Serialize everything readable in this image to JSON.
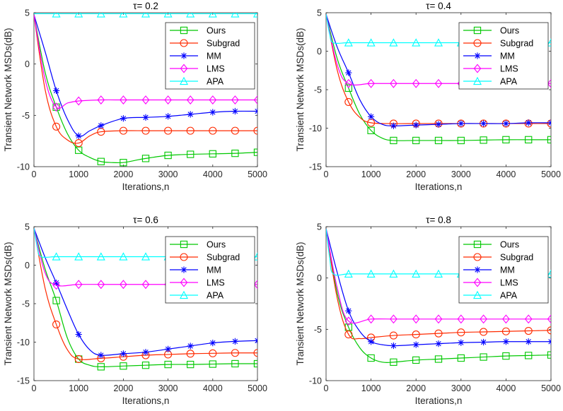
{
  "chart_data": [
    {
      "type": "line",
      "title": "τ= 0.2",
      "xlabel": "Iterations,n",
      "ylabel": "Transient Network MSDs(dB)",
      "xlim": [
        0,
        5000
      ],
      "ylim": [
        -10,
        5
      ],
      "xticks": [
        0,
        1000,
        2000,
        3000,
        4000,
        5000
      ],
      "yticks": [
        5,
        0,
        -5,
        -10
      ],
      "legend_position": "top-right",
      "series": [
        {
          "name": "Ours",
          "color": "#00c800",
          "marker": "square",
          "x": [
            0,
            250,
            500,
            750,
            1000,
            1250,
            1500,
            1750,
            2000,
            2250,
            2500,
            3000,
            3500,
            4000,
            4500,
            5000
          ],
          "y": [
            4.8,
            -0.8,
            -4.2,
            -6.8,
            -8.4,
            -9.1,
            -9.5,
            -9.6,
            -9.6,
            -9.4,
            -9.2,
            -8.9,
            -8.8,
            -8.75,
            -8.7,
            -8.6
          ]
        },
        {
          "name": "Subgrad",
          "color": "#ff2a00",
          "marker": "circle",
          "x": [
            0,
            250,
            500,
            750,
            1000,
            1250,
            1500,
            2000,
            2500,
            3000,
            3500,
            4000,
            4500,
            5000
          ],
          "y": [
            4.8,
            -2.5,
            -6.1,
            -7.4,
            -7.7,
            -7.0,
            -6.6,
            -6.5,
            -6.5,
            -6.5,
            -6.5,
            -6.5,
            -6.5,
            -6.5
          ]
        },
        {
          "name": "MM",
          "color": "#0000ff",
          "marker": "star",
          "x": [
            0,
            250,
            500,
            750,
            1000,
            1250,
            1500,
            2000,
            2500,
            3000,
            3500,
            4000,
            4500,
            5000
          ],
          "y": [
            4.8,
            1.2,
            -2.6,
            -5.4,
            -7.0,
            -6.5,
            -6.0,
            -5.3,
            -5.2,
            -5.1,
            -4.9,
            -4.7,
            -4.6,
            -4.6
          ]
        },
        {
          "name": "LMS",
          "color": "#ff00ff",
          "marker": "diamond",
          "x": [
            0,
            250,
            500,
            750,
            1000,
            1500,
            2000,
            2500,
            3000,
            3500,
            4000,
            4500,
            5000
          ],
          "y": [
            4.8,
            -1.5,
            -4.2,
            -3.8,
            -3.6,
            -3.5,
            -3.5,
            -3.5,
            -3.5,
            -3.5,
            -3.5,
            -3.5,
            -3.5
          ]
        },
        {
          "name": "APA",
          "color": "#00ffff",
          "marker": "triangle",
          "x": [
            0,
            500,
            1000,
            1500,
            2000,
            2500,
            3000,
            3500,
            4000,
            4500,
            5000
          ],
          "y": [
            4.9,
            4.9,
            4.9,
            4.9,
            4.9,
            4.9,
            4.9,
            4.9,
            4.9,
            4.9,
            4.9
          ]
        }
      ]
    },
    {
      "type": "line",
      "title": "τ= 0.4",
      "xlabel": "Iterations,n",
      "ylabel": "Transient Network MSDs(dB)",
      "xlim": [
        0,
        5000
      ],
      "ylim": [
        -15,
        5
      ],
      "xticks": [
        0,
        1000,
        2000,
        3000,
        4000,
        5000
      ],
      "yticks": [
        5,
        0,
        -5,
        -10,
        -15
      ],
      "legend_position": "top-right",
      "series": [
        {
          "name": "Ours",
          "color": "#00c800",
          "marker": "square",
          "x": [
            0,
            250,
            500,
            750,
            1000,
            1250,
            1500,
            2000,
            2500,
            3000,
            3500,
            4000,
            4500,
            5000
          ],
          "y": [
            4.8,
            -1.0,
            -4.8,
            -8.2,
            -10.3,
            -11.3,
            -11.6,
            -11.6,
            -11.6,
            -11.6,
            -11.55,
            -11.5,
            -11.5,
            -11.5
          ]
        },
        {
          "name": "Subgrad",
          "color": "#ff2a00",
          "marker": "circle",
          "x": [
            0,
            250,
            500,
            750,
            1000,
            1500,
            2000,
            2500,
            3000,
            3500,
            4000,
            4500,
            5000
          ],
          "y": [
            4.8,
            -2.5,
            -6.6,
            -8.6,
            -9.3,
            -9.4,
            -9.4,
            -9.4,
            -9.4,
            -9.4,
            -9.4,
            -9.4,
            -9.4
          ]
        },
        {
          "name": "MM",
          "color": "#0000ff",
          "marker": "star",
          "x": [
            0,
            250,
            500,
            750,
            1000,
            1250,
            1500,
            2000,
            2500,
            3000,
            3500,
            4000,
            4500,
            5000
          ],
          "y": [
            4.8,
            0.5,
            -2.8,
            -6.3,
            -8.5,
            -9.5,
            -9.7,
            -9.6,
            -9.5,
            -9.4,
            -9.4,
            -9.4,
            -9.3,
            -9.3
          ]
        },
        {
          "name": "LMS",
          "color": "#ff00ff",
          "marker": "diamond",
          "x": [
            0,
            250,
            500,
            1000,
            1500,
            2000,
            2500,
            3000,
            3500,
            4000,
            4500,
            5000
          ],
          "y": [
            4.8,
            -1.8,
            -4.2,
            -4.2,
            -4.2,
            -4.2,
            -4.2,
            -4.2,
            -4.2,
            -4.2,
            -4.2,
            -4.2
          ]
        },
        {
          "name": "APA",
          "color": "#00ffff",
          "marker": "triangle",
          "x": [
            0,
            80,
            160,
            500,
            1000,
            1500,
            2000,
            2500,
            3000,
            3500,
            4000,
            4500,
            5000
          ],
          "y": [
            4.8,
            2.2,
            1.1,
            1.1,
            1.1,
            1.1,
            1.1,
            1.1,
            1.1,
            1.1,
            1.1,
            1.1,
            1.1
          ]
        }
      ]
    },
    {
      "type": "line",
      "title": "τ= 0.6",
      "xlabel": "Iterations,n",
      "ylabel": "Transient Network MSDs(dB)",
      "xlim": [
        0,
        5000
      ],
      "ylim": [
        -15,
        5
      ],
      "xticks": [
        0,
        1000,
        2000,
        3000,
        4000,
        5000
      ],
      "yticks": [
        5,
        0,
        -5,
        -10,
        -15
      ],
      "legend_position": "top-right",
      "series": [
        {
          "name": "Ours",
          "color": "#00c800",
          "marker": "square",
          "x": [
            0,
            250,
            500,
            750,
            1000,
            1250,
            1500,
            2000,
            2500,
            3000,
            3500,
            4000,
            4500,
            5000
          ],
          "y": [
            4.8,
            -0.5,
            -4.6,
            -9.5,
            -12.2,
            -13.0,
            -13.2,
            -13.1,
            -13.0,
            -12.9,
            -12.9,
            -12.85,
            -12.8,
            -12.8
          ]
        },
        {
          "name": "Subgrad",
          "color": "#ff2a00",
          "marker": "circle",
          "x": [
            0,
            250,
            500,
            750,
            1000,
            1500,
            2000,
            2500,
            3000,
            3500,
            4000,
            4500,
            5000
          ],
          "y": [
            4.8,
            -3.0,
            -7.7,
            -11.0,
            -12.2,
            -12.1,
            -11.9,
            -11.7,
            -11.6,
            -11.5,
            -11.45,
            -11.4,
            -11.4
          ]
        },
        {
          "name": "MM",
          "color": "#0000ff",
          "marker": "star",
          "x": [
            0,
            250,
            500,
            750,
            1000,
            1250,
            1500,
            2000,
            2500,
            3000,
            3500,
            4000,
            4500,
            5000
          ],
          "y": [
            4.8,
            1.0,
            -2.3,
            -5.8,
            -9.0,
            -11.0,
            -11.7,
            -11.5,
            -11.3,
            -10.9,
            -10.5,
            -10.1,
            -9.9,
            -9.8
          ]
        },
        {
          "name": "LMS",
          "color": "#ff00ff",
          "marker": "diamond",
          "x": [
            0,
            250,
            500,
            1000,
            1500,
            2000,
            2500,
            3000,
            3500,
            4000,
            4500,
            5000
          ],
          "y": [
            4.8,
            -1.0,
            -2.6,
            -2.5,
            -2.5,
            -2.5,
            -2.5,
            -2.5,
            -2.5,
            -2.5,
            -2.5,
            -2.5
          ]
        },
        {
          "name": "APA",
          "color": "#00ffff",
          "marker": "triangle",
          "x": [
            0,
            80,
            160,
            500,
            1000,
            1500,
            2000,
            2500,
            3000,
            3500,
            4000,
            4500,
            5000
          ],
          "y": [
            4.8,
            2.2,
            1.1,
            1.1,
            1.1,
            1.1,
            1.1,
            1.1,
            1.1,
            1.1,
            1.1,
            1.1,
            1.1
          ]
        }
      ]
    },
    {
      "type": "line",
      "title": "τ= 0.8",
      "xlabel": "Iterations,n",
      "ylabel": "Transient Network MSDs(dB)",
      "xlim": [
        0,
        5000
      ],
      "ylim": [
        -10,
        5
      ],
      "xticks": [
        0,
        1000,
        2000,
        3000,
        4000,
        5000
      ],
      "yticks": [
        5,
        0,
        -5,
        -10
      ],
      "legend_position": "top-right",
      "series": [
        {
          "name": "Ours",
          "color": "#00c800",
          "marker": "square",
          "x": [
            0,
            250,
            500,
            750,
            1000,
            1250,
            1500,
            2000,
            2500,
            3000,
            3500,
            4000,
            4500,
            5000
          ],
          "y": [
            4.8,
            -1.5,
            -4.8,
            -6.8,
            -7.8,
            -8.2,
            -8.2,
            -8.0,
            -7.9,
            -7.8,
            -7.7,
            -7.6,
            -7.55,
            -7.5
          ]
        },
        {
          "name": "Subgrad",
          "color": "#ff2a00",
          "marker": "circle",
          "x": [
            0,
            250,
            500,
            750,
            1000,
            1500,
            2000,
            2500,
            3000,
            3500,
            4000,
            4500,
            5000
          ],
          "y": [
            4.8,
            -2.0,
            -5.5,
            -5.9,
            -5.8,
            -5.6,
            -5.5,
            -5.4,
            -5.3,
            -5.25,
            -5.2,
            -5.15,
            -5.1
          ]
        },
        {
          "name": "MM",
          "color": "#0000ff",
          "marker": "star",
          "x": [
            0,
            250,
            500,
            750,
            1000,
            1250,
            1500,
            2000,
            2500,
            3000,
            3500,
            4000,
            4500,
            5000
          ],
          "y": [
            4.8,
            0.5,
            -3.2,
            -5.2,
            -6.2,
            -6.5,
            -6.6,
            -6.5,
            -6.4,
            -6.3,
            -6.25,
            -6.2,
            -6.2,
            -6.2
          ]
        },
        {
          "name": "LMS",
          "color": "#ff00ff",
          "marker": "diamond",
          "x": [
            0,
            250,
            500,
            1000,
            1500,
            2000,
            2500,
            3000,
            3500,
            4000,
            4500,
            5000
          ],
          "y": [
            4.8,
            -1.0,
            -4.2,
            -4.0,
            -4.0,
            -4.0,
            -4.0,
            -4.0,
            -4.0,
            -4.0,
            -4.0,
            -4.0
          ]
        },
        {
          "name": "APA",
          "color": "#00ffff",
          "marker": "triangle",
          "x": [
            0,
            80,
            160,
            500,
            1000,
            1500,
            2000,
            2500,
            3000,
            3500,
            4000,
            4500,
            5000
          ],
          "y": [
            4.8,
            2.0,
            0.4,
            0.4,
            0.4,
            0.4,
            0.4,
            0.4,
            0.4,
            0.4,
            0.4,
            0.4,
            0.4
          ]
        }
      ]
    }
  ]
}
